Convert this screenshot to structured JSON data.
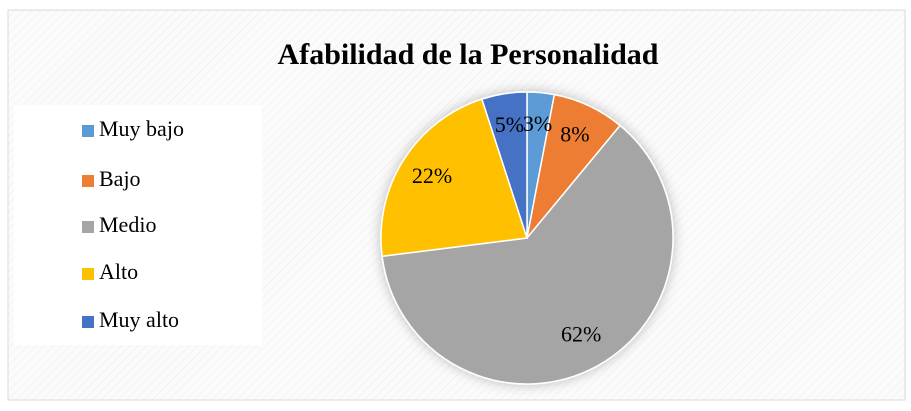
{
  "chart_data": {
    "type": "pie",
    "title": "Afabilidad de la Personalidad",
    "categories": [
      "Muy bajo",
      "Bajo",
      "Medio",
      "Alto",
      "Muy alto"
    ],
    "values": [
      3,
      8,
      62,
      22,
      5
    ],
    "value_labels": [
      "3%",
      "8%",
      "62%",
      "22%",
      "5%"
    ],
    "colors": [
      "#5b9bd5",
      "#ed7d31",
      "#a5a5a5",
      "#ffc000",
      "#4472c4"
    ],
    "legend": "left"
  }
}
